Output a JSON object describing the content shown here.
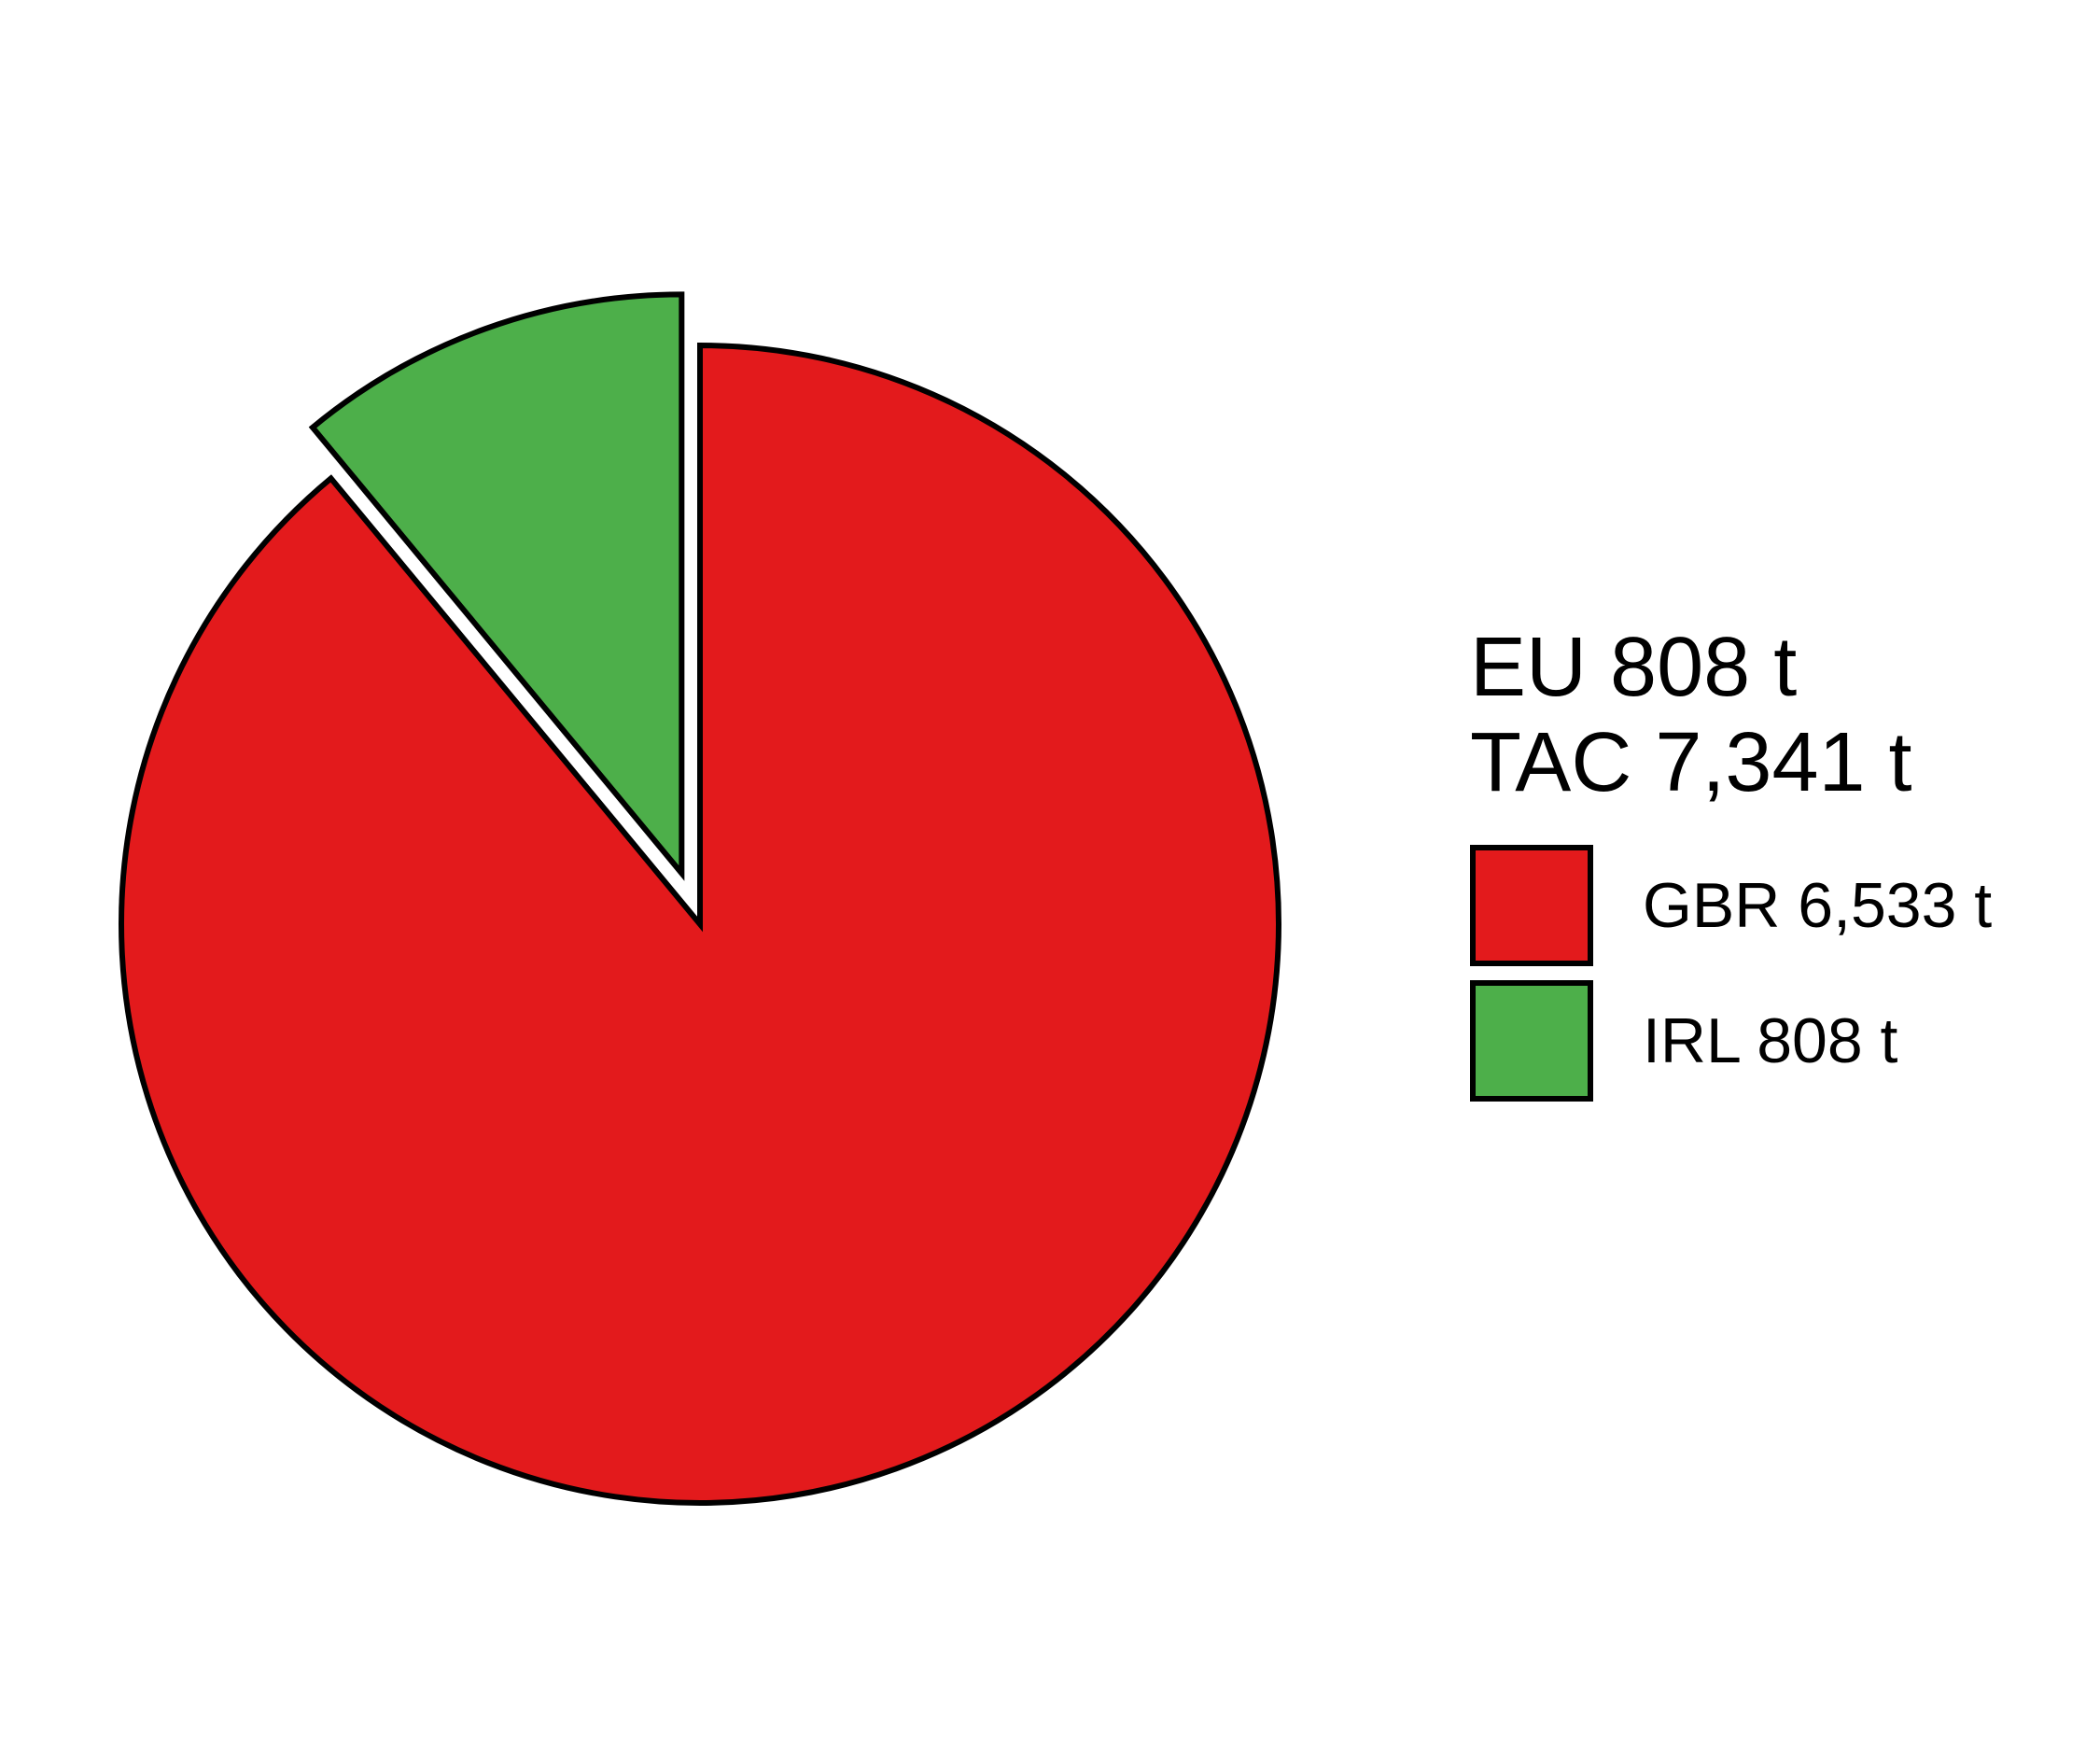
{
  "chart_data": {
    "type": "pie",
    "title_lines": [
      "EU 808 t",
      "TAC 7,341 t"
    ],
    "slices": [
      {
        "label": "GBR 6,533 t",
        "category": "GBR",
        "value": 6533,
        "color": "#E31A1C",
        "exploded": false
      },
      {
        "label": "IRL 808 t",
        "category": "IRL",
        "value": 808,
        "color": "#4DAF4A",
        "exploded": true
      }
    ],
    "total": 7341,
    "unit": "t",
    "legend_position": "right"
  }
}
